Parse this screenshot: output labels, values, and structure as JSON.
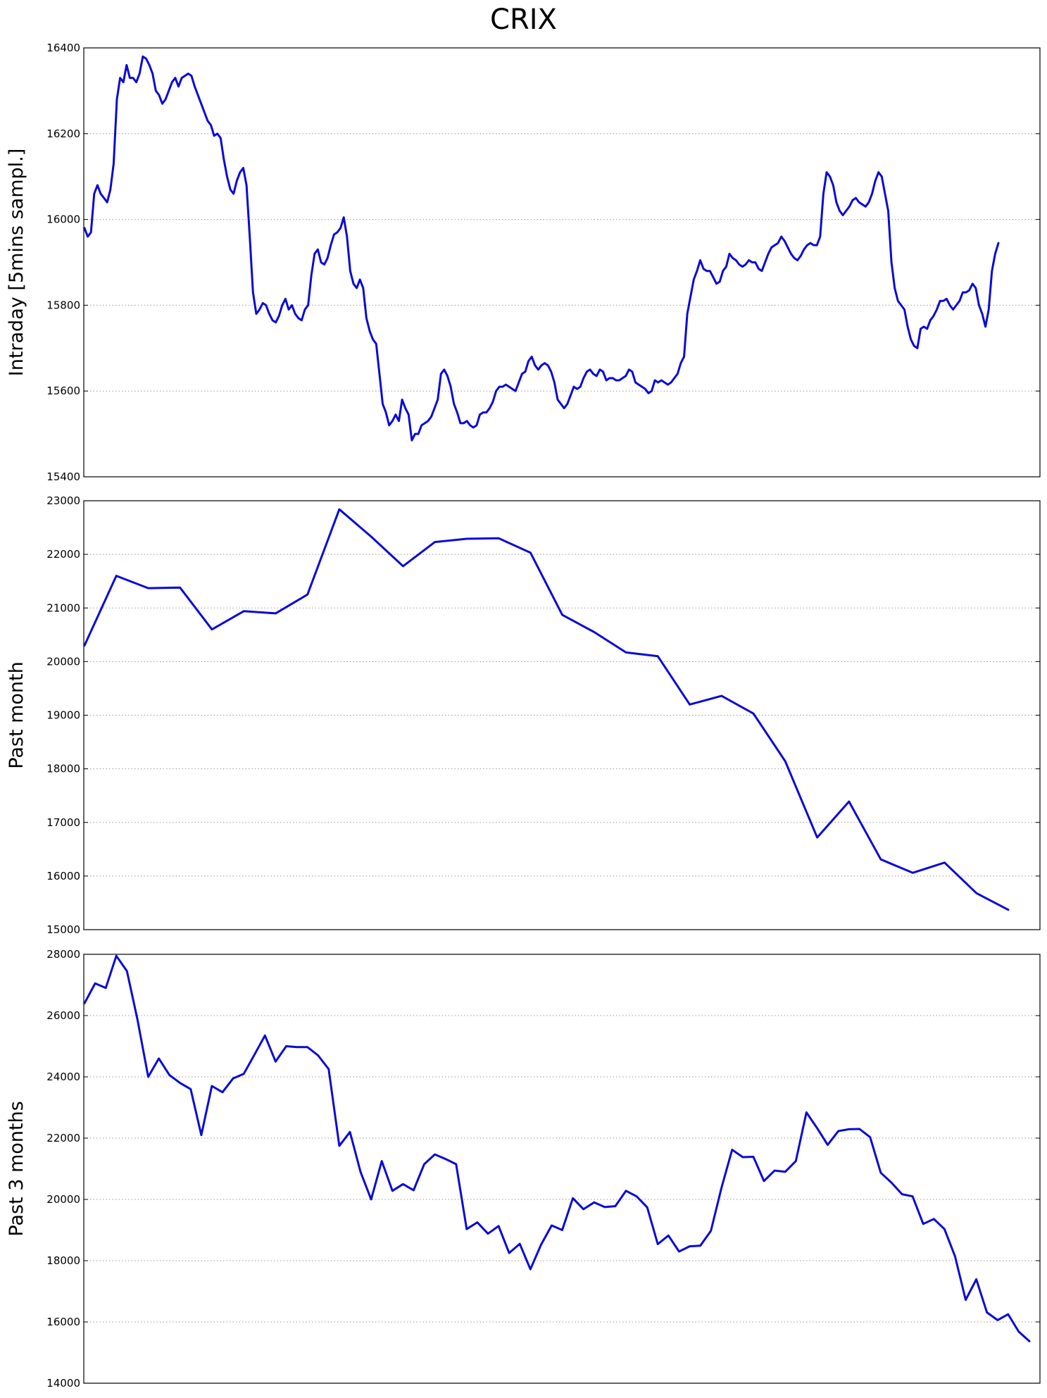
{
  "title": "CRIX",
  "colors": {
    "line": "#0a0ad6",
    "grid": "#9a9a9a",
    "frame": "#000000"
  },
  "chart_data": [
    {
      "type": "line",
      "ylabel": "Intraday [5mins sampl.]",
      "ylim": [
        15400,
        16400
      ],
      "yticks": [
        15400,
        15600,
        15800,
        16000,
        16200,
        16400
      ],
      "yticklabels": [
        "15400",
        "15600",
        "15800",
        "16000",
        "16200",
        "16400"
      ],
      "grid": true,
      "series": [
        {
          "values": [
            15980,
            15960,
            15970,
            16060,
            16080,
            16060,
            16050,
            16040,
            16070,
            16130,
            16280,
            16330,
            16320,
            16360,
            16330,
            16330,
            16320,
            16340,
            16380,
            16375,
            16360,
            16340,
            16300,
            16290,
            16270,
            16280,
            16300,
            16320,
            16330,
            16310,
            16330,
            16335,
            16340,
            16335,
            16310,
            16290,
            16270,
            16250,
            16230,
            16220,
            16195,
            16200,
            16190,
            16140,
            16100,
            16070,
            16060,
            16090,
            16110,
            16120,
            16080,
            15960,
            15830,
            15780,
            15790,
            15805,
            15800,
            15780,
            15765,
            15760,
            15775,
            15800,
            15815,
            15790,
            15800,
            15780,
            15770,
            15765,
            15790,
            15800,
            15870,
            15920,
            15930,
            15900,
            15895,
            15910,
            15940,
            15965,
            15970,
            15980,
            16005,
            15960,
            15880,
            15850,
            15840,
            15860,
            15840,
            15770,
            15740,
            15720,
            15710,
            15640,
            15570,
            15550,
            15520,
            15530,
            15545,
            15530,
            15580,
            15560,
            15545,
            15485,
            15500,
            15500,
            15520,
            15525,
            15530,
            15540,
            15560,
            15580,
            15640,
            15650,
            15635,
            15610,
            15570,
            15550,
            15525,
            15525,
            15530,
            15520,
            15515,
            15520,
            15545,
            15550,
            15550,
            15560,
            15575,
            15600,
            15610,
            15610,
            15615,
            15610,
            15605,
            15600,
            15620,
            15640,
            15645,
            15670,
            15680,
            15660,
            15650,
            15660,
            15665,
            15660,
            15645,
            15620,
            15580,
            15570,
            15560,
            15570,
            15590,
            15610,
            15605,
            15610,
            15630,
            15645,
            15650,
            15640,
            15635,
            15650,
            15645,
            15625,
            15630,
            15630,
            15625,
            15625,
            15630,
            15635,
            15650,
            15645,
            15620,
            15615,
            15610,
            15605,
            15595,
            15600,
            15625,
            15620,
            15625,
            15620,
            15615,
            15620,
            15630,
            15640,
            15665,
            15680,
            15780,
            15820,
            15860,
            15880,
            15905,
            15885,
            15880,
            15880,
            15865,
            15850,
            15855,
            15880,
            15890,
            15920,
            15910,
            15905,
            15895,
            15890,
            15895,
            15905,
            15900,
            15900,
            15885,
            15880,
            15900,
            15920,
            15935,
            15940,
            15945,
            15960,
            15950,
            15935,
            15920,
            15910,
            15905,
            15915,
            15930,
            15940,
            15945,
            15940,
            15940,
            15960,
            16060,
            16110,
            16100,
            16080,
            16040,
            16020,
            16010,
            16020,
            16030,
            16045,
            16050,
            16040,
            16035,
            16030,
            16040,
            16060,
            16090,
            16110,
            16100,
            16060,
            16020,
            15900,
            15840,
            15810,
            15800,
            15790,
            15750,
            15720,
            15705,
            15700,
            15745,
            15750,
            15745,
            15765,
            15775,
            15790,
            15810,
            15810,
            15815,
            15800,
            15790,
            15800,
            15810,
            15830,
            15830,
            15835,
            15850,
            15840,
            15800,
            15780,
            15750,
            15790,
            15880,
            15920,
            15945
          ]
        }
      ]
    },
    {
      "type": "line",
      "ylabel": "Past month",
      "ylim": [
        15000,
        23000
      ],
      "yticks": [
        15000,
        16000,
        17000,
        18000,
        19000,
        20000,
        21000,
        22000,
        23000
      ],
      "yticklabels": [
        "15000",
        "16000",
        "17000",
        "18000",
        "19000",
        "20000",
        "21000",
        "22000",
        "23000"
      ],
      "grid": true,
      "series": [
        {
          "values": [
            20300,
            21600,
            21370,
            21380,
            20600,
            20940,
            20900,
            21250,
            22840,
            22330,
            21780,
            22230,
            22290,
            22300,
            22030,
            20870,
            20550,
            20170,
            20100,
            19200,
            19360,
            19030,
            18140,
            16720,
            17390,
            16310,
            16060,
            16250,
            15680,
            15370
          ]
        }
      ]
    },
    {
      "type": "line",
      "ylabel": "Past 3 months",
      "ylim": [
        14000,
        28000
      ],
      "yticks": [
        14000,
        16000,
        18000,
        20000,
        22000,
        24000,
        26000,
        28000
      ],
      "yticklabels": [
        "14000",
        "16000",
        "18000",
        "20000",
        "22000",
        "24000",
        "26000",
        "28000"
      ],
      "grid": true,
      "series": [
        {
          "values": [
            26400,
            27050,
            26900,
            27950,
            27450,
            25850,
            24000,
            24600,
            24060,
            23800,
            23600,
            22100,
            23700,
            23500,
            23950,
            24100,
            24720,
            25350,
            24500,
            25000,
            24970,
            24970,
            24700,
            24250,
            21750,
            22200,
            20900,
            20000,
            21250,
            20280,
            20500,
            20300,
            21150,
            21470,
            21320,
            21150,
            19030,
            19250,
            18880,
            19130,
            18250,
            18550,
            17720,
            18520,
            19150,
            19000,
            20040,
            19680,
            19900,
            19750,
            19780,
            20280,
            20100,
            19740,
            18540,
            18820,
            18300,
            18470,
            18490,
            18970,
            20380,
            21620,
            21380,
            21390,
            20600,
            20940,
            20900,
            21250,
            22840,
            22330,
            21780,
            22230,
            22290,
            22300,
            22030,
            20870,
            20550,
            20170,
            20100,
            19200,
            19360,
            19030,
            18140,
            16720,
            17390,
            16310,
            16060,
            16250,
            15680,
            15370
          ]
        }
      ]
    }
  ]
}
